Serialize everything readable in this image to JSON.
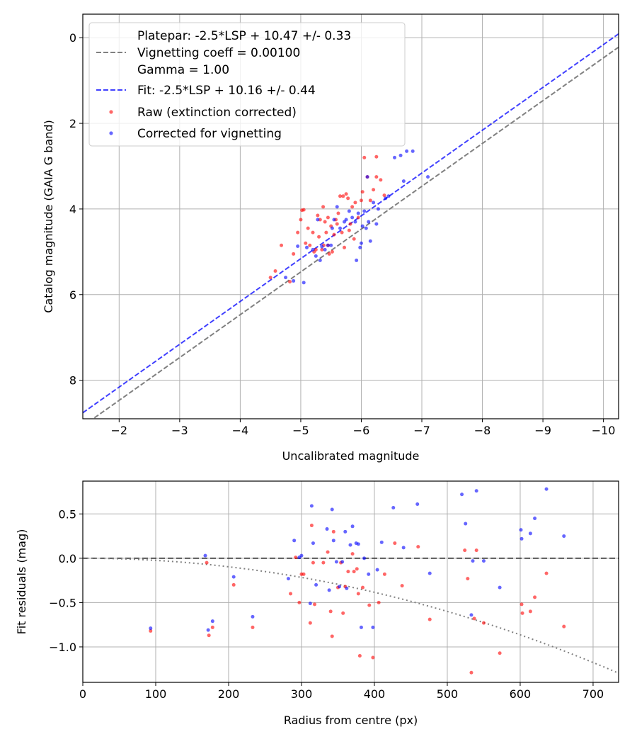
{
  "chart_data": [
    {
      "type": "scatter",
      "name": "calibration",
      "xlabel": "Uncalibrated magnitude",
      "ylabel": "Catalog magnitude (GAIA G band)",
      "xlim": [
        -1.4,
        -10.25
      ],
      "ylim": [
        8.9,
        -0.55
      ],
      "xticks": [
        -2,
        -3,
        -4,
        -5,
        -6,
        -7,
        -8,
        -9,
        -10
      ],
      "xtick_labels": [
        "−2",
        "−3",
        "−4",
        "−5",
        "−6",
        "−7",
        "−8",
        "−9",
        "−10"
      ],
      "yticks": [
        0,
        2,
        4,
        6,
        8
      ],
      "ytick_labels": [
        "0",
        "2",
        "4",
        "6",
        "8"
      ],
      "grid": true,
      "legend_position": "top-left",
      "legend": {
        "platepar_line1": "Platepar: -2.5*LSP + 10.47 +/- 0.33",
        "platepar_line2": "Vignetting coeff = 0.00100",
        "platepar_line3": "Gamma = 1.00",
        "fit": "Fit: -2.5*LSP + 10.16 +/- 0.44",
        "raw": "Raw (extinction corrected)",
        "corrected": "Corrected for vignetting"
      },
      "lines": [
        {
          "name": "Platepar",
          "color": "#808080",
          "style": "dashed",
          "slope": 1,
          "intercept": 10.47
        },
        {
          "name": "Fit",
          "color": "#0000ff",
          "style": "dashed",
          "slope": 1,
          "intercept": 10.16
        }
      ],
      "series": [
        {
          "name": "Raw (extinction corrected)",
          "color": "#ff0000",
          "points": [
            [
              -4.5,
              5.6
            ],
            [
              -4.58,
              5.45
            ],
            [
              -4.68,
              4.85
            ],
            [
              -4.82,
              5.7
            ],
            [
              -4.88,
              5.05
            ],
            [
              -4.95,
              4.55
            ],
            [
              -5.0,
              4.25
            ],
            [
              -5.02,
              4.03
            ],
            [
              -5.05,
              4.02
            ],
            [
              -5.08,
              4.8
            ],
            [
              -5.12,
              4.45
            ],
            [
              -5.15,
              4.85
            ],
            [
              -5.2,
              4.55
            ],
            [
              -5.22,
              5.0
            ],
            [
              -5.25,
              4.95
            ],
            [
              -5.28,
              4.15
            ],
            [
              -5.3,
              4.65
            ],
            [
              -5.32,
              4.25
            ],
            [
              -5.35,
              4.95
            ],
            [
              -5.37,
              3.95
            ],
            [
              -5.38,
              4.85
            ],
            [
              -5.4,
              4.3
            ],
            [
              -5.42,
              4.55
            ],
            [
              -5.45,
              4.2
            ],
            [
              -5.45,
              4.85
            ],
            [
              -5.47,
              5.05
            ],
            [
              -5.5,
              4.4
            ],
            [
              -5.52,
              5.0
            ],
            [
              -5.55,
              4.6
            ],
            [
              -5.58,
              4.25
            ],
            [
              -5.6,
              4.35
            ],
            [
              -5.62,
              4.1
            ],
            [
              -5.65,
              3.7
            ],
            [
              -5.68,
              4.55
            ],
            [
              -5.7,
              3.7
            ],
            [
              -5.72,
              4.9
            ],
            [
              -5.75,
              3.65
            ],
            [
              -5.78,
              3.75
            ],
            [
              -5.8,
              4.5
            ],
            [
              -5.82,
              4.35
            ],
            [
              -5.85,
              3.95
            ],
            [
              -5.88,
              4.7
            ],
            [
              -5.9,
              3.85
            ],
            [
              -5.95,
              4.2
            ],
            [
              -6.0,
              3.8
            ],
            [
              -6.02,
              3.6
            ],
            [
              -6.05,
              2.8
            ],
            [
              -6.1,
              3.25
            ],
            [
              -6.15,
              3.8
            ],
            [
              -6.2,
              3.55
            ],
            [
              -6.25,
              3.25
            ],
            [
              -6.25,
              2.78
            ],
            [
              -6.32,
              3.32
            ],
            [
              -6.38,
              3.68
            ]
          ]
        },
        {
          "name": "Corrected for vignetting",
          "color": "#0000ff",
          "points": [
            [
              -4.75,
              5.6
            ],
            [
              -4.88,
              5.68
            ],
            [
              -4.95,
              4.87
            ],
            [
              -5.05,
              5.72
            ],
            [
              -5.1,
              4.9
            ],
            [
              -5.2,
              4.95
            ],
            [
              -5.25,
              5.1
            ],
            [
              -5.28,
              4.25
            ],
            [
              -5.32,
              5.2
            ],
            [
              -5.35,
              4.88
            ],
            [
              -5.4,
              4.95
            ],
            [
              -5.45,
              4.85
            ],
            [
              -5.5,
              4.85
            ],
            [
              -5.52,
              4.45
            ],
            [
              -5.55,
              4.25
            ],
            [
              -5.6,
              3.95
            ],
            [
              -5.65,
              4.45
            ],
            [
              -5.72,
              4.3
            ],
            [
              -5.75,
              4.25
            ],
            [
              -5.8,
              4.05
            ],
            [
              -5.85,
              4.2
            ],
            [
              -5.9,
              4.3
            ],
            [
              -5.92,
              5.2
            ],
            [
              -5.95,
              4.1
            ],
            [
              -5.98,
              4.9
            ],
            [
              -6.0,
              4.8
            ],
            [
              -6.02,
              4.4
            ],
            [
              -6.05,
              4.05
            ],
            [
              -6.08,
              4.45
            ],
            [
              -6.1,
              3.25
            ],
            [
              -6.12,
              4.3
            ],
            [
              -6.15,
              4.75
            ],
            [
              -6.2,
              3.85
            ],
            [
              -6.25,
              4.35
            ],
            [
              -6.28,
              4.0
            ],
            [
              -6.4,
              3.75
            ],
            [
              -6.45,
              3.7
            ],
            [
              -6.55,
              2.8
            ],
            [
              -6.65,
              2.75
            ],
            [
              -6.7,
              3.35
            ],
            [
              -6.75,
              2.65
            ],
            [
              -6.85,
              2.65
            ],
            [
              -7.1,
              3.25
            ]
          ]
        }
      ]
    },
    {
      "type": "scatter",
      "name": "residuals",
      "xlabel": "Radius from centre (px)",
      "ylabel": "Fit residuals (mag)",
      "xlim": [
        0,
        735
      ],
      "ylim": [
        -1.4,
        0.87
      ],
      "xticks": [
        0,
        100,
        200,
        300,
        400,
        500,
        600,
        700
      ],
      "xtick_labels": [
        "0",
        "100",
        "200",
        "300",
        "400",
        "500",
        "600",
        "700"
      ],
      "yticks": [
        0.5,
        0.0,
        -0.5,
        -1.0
      ],
      "ytick_labels": [
        "0.5",
        "0.0",
        "−0.5",
        "−1.0"
      ],
      "grid": true,
      "lines": [
        {
          "name": "zero",
          "color": "#000000",
          "style": "dashed",
          "y": 0
        },
        {
          "name": "vignetting model",
          "color": "#808080",
          "style": "dotted",
          "coeff": 0.001
        }
      ],
      "series": [
        {
          "name": "Raw",
          "color": "#ff0000",
          "points": [
            [
              93,
              -0.82
            ],
            [
              170,
              -0.05
            ],
            [
              173,
              -0.87
            ],
            [
              178,
              -0.78
            ],
            [
              207,
              -0.3
            ],
            [
              233,
              -0.78
            ],
            [
              285,
              -0.4
            ],
            [
              292,
              0.01
            ],
            [
              297,
              -0.5
            ],
            [
              300,
              -0.18
            ],
            [
              303,
              -0.18
            ],
            [
              312,
              -0.73
            ],
            [
              314,
              0.37
            ],
            [
              316,
              -0.05
            ],
            [
              318,
              -0.52
            ],
            [
              330,
              -0.05
            ],
            [
              336,
              0.07
            ],
            [
              340,
              -0.6
            ],
            [
              342,
              -0.88
            ],
            [
              344,
              0.3
            ],
            [
              350,
              -0.33
            ],
            [
              354,
              -0.05
            ],
            [
              357,
              -0.62
            ],
            [
              360,
              -0.32
            ],
            [
              364,
              -0.15
            ],
            [
              370,
              0.05
            ],
            [
              372,
              -0.15
            ],
            [
              376,
              -0.12
            ],
            [
              378,
              -0.4
            ],
            [
              380,
              -1.1
            ],
            [
              384,
              -0.33
            ],
            [
              393,
              -0.53
            ],
            [
              398,
              -1.12
            ],
            [
              406,
              -0.5
            ],
            [
              414,
              -0.18
            ],
            [
              428,
              0.17
            ],
            [
              438,
              -0.31
            ],
            [
              460,
              0.13
            ],
            [
              476,
              -0.69
            ],
            [
              524,
              0.09
            ],
            [
              528,
              -0.23
            ],
            [
              533,
              -1.29
            ],
            [
              537,
              -0.68
            ],
            [
              540,
              0.09
            ],
            [
              550,
              -0.73
            ],
            [
              572,
              -1.07
            ],
            [
              602,
              -0.52
            ],
            [
              603,
              -0.62
            ],
            [
              614,
              -0.6
            ],
            [
              620,
              -0.44
            ],
            [
              636,
              -0.17
            ],
            [
              660,
              -0.77
            ]
          ]
        },
        {
          "name": "Corrected",
          "color": "#0000ff",
          "points": [
            [
              93,
              -0.79
            ],
            [
              168,
              0.03
            ],
            [
              172,
              -0.81
            ],
            [
              178,
              -0.71
            ],
            [
              207,
              -0.21
            ],
            [
              233,
              -0.66
            ],
            [
              282,
              -0.23
            ],
            [
              290,
              0.2
            ],
            [
              297,
              0.01
            ],
            [
              300,
              0.03
            ],
            [
              312,
              -0.51
            ],
            [
              314,
              0.59
            ],
            [
              316,
              0.17
            ],
            [
              320,
              -0.3
            ],
            [
              335,
              0.33
            ],
            [
              338,
              -0.36
            ],
            [
              342,
              0.55
            ],
            [
              344,
              0.2
            ],
            [
              348,
              -0.04
            ],
            [
              352,
              -0.32
            ],
            [
              356,
              -0.04
            ],
            [
              360,
              0.3
            ],
            [
              362,
              -0.34
            ],
            [
              367,
              0.15
            ],
            [
              370,
              0.36
            ],
            [
              375,
              0.17
            ],
            [
              378,
              0.16
            ],
            [
              382,
              -0.78
            ],
            [
              386,
              0.0
            ],
            [
              392,
              -0.18
            ],
            [
              398,
              -0.78
            ],
            [
              404,
              -0.13
            ],
            [
              410,
              0.18
            ],
            [
              426,
              0.57
            ],
            [
              440,
              0.12
            ],
            [
              459,
              0.61
            ],
            [
              476,
              -0.17
            ],
            [
              520,
              0.72
            ],
            [
              525,
              0.39
            ],
            [
              533,
              -0.64
            ],
            [
              535,
              -0.03
            ],
            [
              540,
              0.76
            ],
            [
              550,
              -0.03
            ],
            [
              572,
              -0.33
            ],
            [
              601,
              0.32
            ],
            [
              602,
              0.22
            ],
            [
              614,
              0.28
            ],
            [
              620,
              0.45
            ],
            [
              636,
              0.78
            ],
            [
              660,
              0.25
            ]
          ]
        }
      ]
    }
  ]
}
